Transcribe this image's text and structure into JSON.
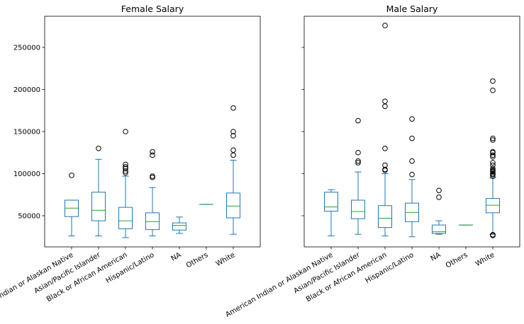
{
  "chart_data": [
    {
      "type": "box",
      "title": "Female Salary",
      "categories": [
        "American Indian or Alaskan Native",
        "Asian/Pacific Islander",
        "Black or African American",
        "Hispanic/Latino",
        "NA",
        "Others",
        "White"
      ],
      "ylim": [
        13000,
        287000
      ],
      "yticks": [
        "50000",
        "100000",
        "150000",
        "200000",
        "250000"
      ],
      "show_ytick_labels": true,
      "boxes": [
        {
          "whislo": 26000,
          "q1": 49000,
          "med": 59000,
          "q3": 68500,
          "whishi": 68500,
          "fliers": [
            98000
          ]
        },
        {
          "whislo": 26000,
          "q1": 44000,
          "med": 56500,
          "q3": 78000,
          "whishi": 117000,
          "fliers": [
            130000
          ]
        },
        {
          "whislo": 24000,
          "q1": 34500,
          "med": 44000,
          "q3": 60000,
          "whishi": 97000,
          "fliers": [
            101000,
            103000,
            106000,
            108000,
            111000,
            150000
          ]
        },
        {
          "whislo": 26000,
          "q1": 33500,
          "med": 43000,
          "q3": 53500,
          "whishi": 83500,
          "fliers": [
            95500,
            97000,
            122000,
            126000
          ]
        },
        {
          "whislo": 29000,
          "q1": 33000,
          "med": 38500,
          "q3": 41500,
          "whishi": 48500,
          "fliers": []
        },
        {
          "whislo": 63500,
          "q1": 63500,
          "med": 63500,
          "q3": 63500,
          "whishi": 63500,
          "fliers": []
        },
        {
          "whislo": 28000,
          "q1": 47500,
          "med": 61500,
          "q3": 77000,
          "whishi": 116000,
          "fliers": [
            122000,
            128000,
            145000,
            150000,
            178000
          ]
        }
      ]
    },
    {
      "type": "box",
      "title": "Male Salary",
      "categories": [
        "American Indian or Alaskan Native",
        "Asian/Pacific Islander",
        "Black or African American",
        "Hispanic/Latino",
        "NA",
        "Others",
        "White"
      ],
      "ylim": [
        13000,
        287000
      ],
      "yticks": [
        "50000",
        "100000",
        "150000",
        "200000",
        "250000"
      ],
      "show_ytick_labels": false,
      "boxes": [
        {
          "whislo": 26000,
          "q1": 55500,
          "med": 60500,
          "q3": 78000,
          "whishi": 81000,
          "fliers": []
        },
        {
          "whislo": 28000,
          "q1": 46500,
          "med": 55000,
          "q3": 68500,
          "whishi": 102000,
          "fliers": [
            113000,
            115000,
            125000,
            163000
          ]
        },
        {
          "whislo": 26000,
          "q1": 36000,
          "med": 47000,
          "q3": 62000,
          "whishi": 100000,
          "fliers": [
            104000,
            105000,
            110000,
            130000,
            180000,
            186000,
            276000
          ]
        },
        {
          "whislo": 25000,
          "q1": 43000,
          "med": 54000,
          "q3": 65000,
          "whishi": 93000,
          "fliers": [
            99000,
            115000,
            142000,
            165000
          ]
        },
        {
          "whislo": 28000,
          "q1": 29000,
          "med": 31000,
          "q3": 39000,
          "whishi": 44000,
          "fliers": [
            72000,
            80000
          ]
        },
        {
          "whislo": 39000,
          "q1": 39000,
          "med": 39000,
          "q3": 39000,
          "whishi": 39000,
          "fliers": []
        },
        {
          "whislo": 28000,
          "q1": 53500,
          "med": 62500,
          "q3": 70500,
          "whishi": 95000,
          "fliers": [
            26500,
            27500,
            97000,
            99000,
            100000,
            102000,
            103000,
            104000,
            106000,
            110000,
            113000,
            120000,
            122000,
            125000,
            126000,
            140000,
            142000,
            199000,
            210000
          ]
        }
      ]
    }
  ],
  "colors": {
    "box": "#1f77b4",
    "median": "#2ca02c",
    "flier": "#000000",
    "axes": "#000000"
  }
}
